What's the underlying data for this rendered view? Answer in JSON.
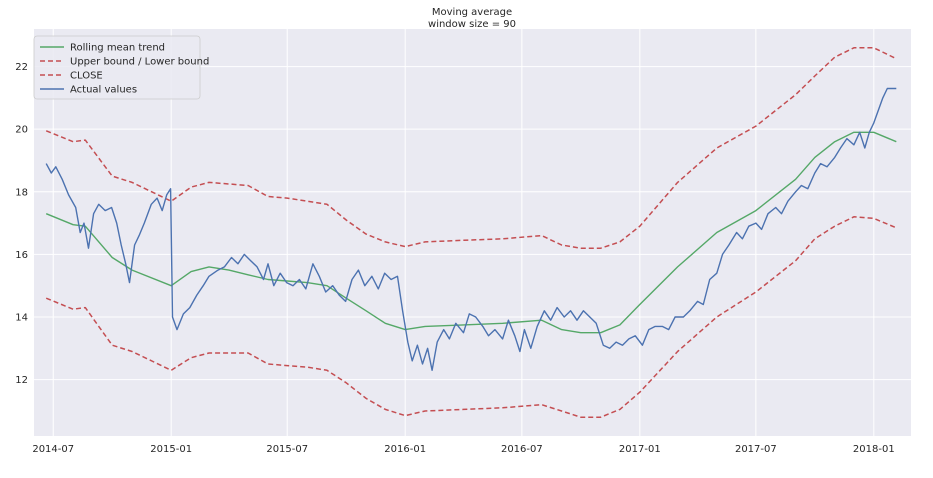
{
  "chart_data": {
    "type": "line",
    "title": "Moving average",
    "subtitle": "window size = 90",
    "xlabel": "",
    "ylabel": "",
    "grid": true,
    "legend_position": "top-left",
    "x_ticks": [
      "2014-07",
      "2015-01",
      "2015-07",
      "2016-01",
      "2016-07",
      "2017-01",
      "2017-07",
      "2018-01"
    ],
    "y_ticks": [
      12,
      14,
      16,
      18,
      20,
      22
    ],
    "xlim": [
      "2014-06-01",
      "2018-02-28"
    ],
    "ylim": [
      10.2,
      23.2
    ],
    "colors": {
      "background": "#eaeaf2",
      "grid": "#ffffff",
      "rolling_mean": "#55a868",
      "bounds": "#c44e52",
      "actual": "#4c72b0"
    },
    "series": [
      {
        "name": "Rolling mean trend",
        "style": "solid",
        "color_key": "rolling_mean",
        "points": [
          [
            "2014-06-20",
            17.3
          ],
          [
            "2014-08-01",
            16.95
          ],
          [
            "2014-08-20",
            16.9
          ],
          [
            "2014-10-01",
            15.9
          ],
          [
            "2014-11-01",
            15.5
          ],
          [
            "2015-01-01",
            15.0
          ],
          [
            "2015-02-01",
            15.45
          ],
          [
            "2015-03-01",
            15.6
          ],
          [
            "2015-04-01",
            15.5
          ],
          [
            "2015-05-01",
            15.35
          ],
          [
            "2015-06-01",
            15.2
          ],
          [
            "2015-07-01",
            15.15
          ],
          [
            "2015-08-01",
            15.1
          ],
          [
            "2015-09-01",
            15.0
          ],
          [
            "2015-10-01",
            14.6
          ],
          [
            "2015-11-01",
            14.2
          ],
          [
            "2015-12-01",
            13.8
          ],
          [
            "2016-01-01",
            13.6
          ],
          [
            "2016-02-01",
            13.7
          ],
          [
            "2016-04-01",
            13.75
          ],
          [
            "2016-06-01",
            13.8
          ],
          [
            "2016-08-01",
            13.9
          ],
          [
            "2016-09-01",
            13.6
          ],
          [
            "2016-10-01",
            13.5
          ],
          [
            "2016-11-01",
            13.5
          ],
          [
            "2016-12-01",
            13.75
          ],
          [
            "2017-01-01",
            14.4
          ],
          [
            "2017-03-01",
            15.6
          ],
          [
            "2017-05-01",
            16.7
          ],
          [
            "2017-07-01",
            17.4
          ],
          [
            "2017-09-01",
            18.4
          ],
          [
            "2017-10-01",
            19.1
          ],
          [
            "2017-11-01",
            19.6
          ],
          [
            "2017-12-01",
            19.9
          ],
          [
            "2018-01-01",
            19.9
          ],
          [
            "2018-02-05",
            19.6
          ]
        ]
      },
      {
        "name": "Upper bound / Lower bound",
        "style": "dashed",
        "color_key": "bounds",
        "points": [
          [
            "2014-06-20",
            19.95
          ],
          [
            "2014-08-01",
            19.6
          ],
          [
            "2014-08-20",
            19.65
          ],
          [
            "2014-10-01",
            18.5
          ],
          [
            "2014-11-01",
            18.3
          ],
          [
            "2015-01-01",
            17.7
          ],
          [
            "2015-02-01",
            18.15
          ],
          [
            "2015-03-01",
            18.3
          ],
          [
            "2015-05-01",
            18.2
          ],
          [
            "2015-06-01",
            17.85
          ],
          [
            "2015-07-01",
            17.8
          ],
          [
            "2015-08-01",
            17.7
          ],
          [
            "2015-09-01",
            17.6
          ],
          [
            "2015-10-01",
            17.1
          ],
          [
            "2015-11-01",
            16.65
          ],
          [
            "2015-12-01",
            16.4
          ],
          [
            "2016-01-01",
            16.25
          ],
          [
            "2016-02-01",
            16.4
          ],
          [
            "2016-04-01",
            16.45
          ],
          [
            "2016-06-01",
            16.5
          ],
          [
            "2016-08-01",
            16.6
          ],
          [
            "2016-09-01",
            16.3
          ],
          [
            "2016-10-01",
            16.2
          ],
          [
            "2016-11-01",
            16.2
          ],
          [
            "2016-12-01",
            16.4
          ],
          [
            "2017-01-01",
            16.9
          ],
          [
            "2017-03-01",
            18.3
          ],
          [
            "2017-05-01",
            19.4
          ],
          [
            "2017-07-01",
            20.1
          ],
          [
            "2017-09-01",
            21.1
          ],
          [
            "2017-10-01",
            21.7
          ],
          [
            "2017-11-01",
            22.3
          ],
          [
            "2017-12-01",
            22.6
          ],
          [
            "2018-01-01",
            22.6
          ],
          [
            "2018-02-05",
            22.25
          ]
        ]
      },
      {
        "name": "CLOSE",
        "style": "dashed",
        "color_key": "bounds",
        "points": [
          [
            "2014-06-20",
            14.6
          ],
          [
            "2014-08-01",
            14.25
          ],
          [
            "2014-08-20",
            14.3
          ],
          [
            "2014-10-01",
            13.1
          ],
          [
            "2014-11-01",
            12.9
          ],
          [
            "2015-01-01",
            12.3
          ],
          [
            "2015-02-01",
            12.7
          ],
          [
            "2015-03-01",
            12.85
          ],
          [
            "2015-05-01",
            12.85
          ],
          [
            "2015-06-01",
            12.5
          ],
          [
            "2015-07-01",
            12.45
          ],
          [
            "2015-08-01",
            12.4
          ],
          [
            "2015-09-01",
            12.3
          ],
          [
            "2015-10-01",
            11.9
          ],
          [
            "2015-11-01",
            11.4
          ],
          [
            "2015-12-01",
            11.05
          ],
          [
            "2016-01-01",
            10.85
          ],
          [
            "2016-02-01",
            11.0
          ],
          [
            "2016-04-01",
            11.05
          ],
          [
            "2016-06-01",
            11.1
          ],
          [
            "2016-08-01",
            11.2
          ],
          [
            "2016-09-01",
            11.0
          ],
          [
            "2016-10-01",
            10.8
          ],
          [
            "2016-11-01",
            10.8
          ],
          [
            "2016-12-01",
            11.05
          ],
          [
            "2017-01-01",
            11.6
          ],
          [
            "2017-03-01",
            12.9
          ],
          [
            "2017-05-01",
            14.0
          ],
          [
            "2017-07-01",
            14.8
          ],
          [
            "2017-09-01",
            15.8
          ],
          [
            "2017-10-01",
            16.5
          ],
          [
            "2017-11-01",
            16.9
          ],
          [
            "2017-12-01",
            17.2
          ],
          [
            "2018-01-01",
            17.15
          ],
          [
            "2018-02-05",
            16.85
          ]
        ]
      },
      {
        "name": "Actual values",
        "style": "solid",
        "color_key": "actual",
        "points": [
          [
            "2014-06-20",
            18.9
          ],
          [
            "2014-06-28",
            18.6
          ],
          [
            "2014-07-05",
            18.8
          ],
          [
            "2014-07-15",
            18.4
          ],
          [
            "2014-07-25",
            17.9
          ],
          [
            "2014-08-05",
            17.5
          ],
          [
            "2014-08-12",
            16.7
          ],
          [
            "2014-08-18",
            17.0
          ],
          [
            "2014-08-25",
            16.2
          ],
          [
            "2014-09-02",
            17.3
          ],
          [
            "2014-09-10",
            17.6
          ],
          [
            "2014-09-20",
            17.4
          ],
          [
            "2014-09-30",
            17.5
          ],
          [
            "2014-10-08",
            17.0
          ],
          [
            "2014-10-15",
            16.3
          ],
          [
            "2014-10-22",
            15.7
          ],
          [
            "2014-10-28",
            15.1
          ],
          [
            "2014-11-05",
            16.3
          ],
          [
            "2014-11-12",
            16.6
          ],
          [
            "2014-11-20",
            17.0
          ],
          [
            "2014-12-01",
            17.6
          ],
          [
            "2014-12-10",
            17.8
          ],
          [
            "2014-12-18",
            17.4
          ],
          [
            "2014-12-25",
            17.9
          ],
          [
            "2014-12-31",
            18.1
          ],
          [
            "2015-01-03",
            14.0
          ],
          [
            "2015-01-10",
            13.6
          ],
          [
            "2015-01-20",
            14.1
          ],
          [
            "2015-01-30",
            14.3
          ],
          [
            "2015-02-10",
            14.7
          ],
          [
            "2015-02-20",
            15.0
          ],
          [
            "2015-03-01",
            15.3
          ],
          [
            "2015-03-15",
            15.5
          ],
          [
            "2015-03-25",
            15.6
          ],
          [
            "2015-04-05",
            15.9
          ],
          [
            "2015-04-15",
            15.7
          ],
          [
            "2015-04-25",
            16.0
          ],
          [
            "2015-05-05",
            15.8
          ],
          [
            "2015-05-15",
            15.6
          ],
          [
            "2015-05-25",
            15.2
          ],
          [
            "2015-06-01",
            15.7
          ],
          [
            "2015-06-10",
            15.0
          ],
          [
            "2015-06-20",
            15.4
          ],
          [
            "2015-06-30",
            15.1
          ],
          [
            "2015-07-10",
            15.0
          ],
          [
            "2015-07-20",
            15.2
          ],
          [
            "2015-07-30",
            14.9
          ],
          [
            "2015-08-10",
            15.7
          ],
          [
            "2015-08-20",
            15.3
          ],
          [
            "2015-08-30",
            14.8
          ],
          [
            "2015-09-10",
            15.0
          ],
          [
            "2015-09-20",
            14.7
          ],
          [
            "2015-09-30",
            14.5
          ],
          [
            "2015-10-10",
            15.2
          ],
          [
            "2015-10-20",
            15.5
          ],
          [
            "2015-10-30",
            15.0
          ],
          [
            "2015-11-10",
            15.3
          ],
          [
            "2015-11-20",
            14.9
          ],
          [
            "2015-11-30",
            15.4
          ],
          [
            "2015-12-10",
            15.2
          ],
          [
            "2015-12-20",
            15.3
          ],
          [
            "2015-12-28",
            14.2
          ],
          [
            "2016-01-05",
            13.2
          ],
          [
            "2016-01-12",
            12.6
          ],
          [
            "2016-01-20",
            13.1
          ],
          [
            "2016-01-28",
            12.5
          ],
          [
            "2016-02-05",
            13.0
          ],
          [
            "2016-02-12",
            12.3
          ],
          [
            "2016-02-20",
            13.2
          ],
          [
            "2016-03-01",
            13.6
          ],
          [
            "2016-03-10",
            13.3
          ],
          [
            "2016-03-20",
            13.8
          ],
          [
            "2016-04-01",
            13.5
          ],
          [
            "2016-04-10",
            14.1
          ],
          [
            "2016-04-20",
            14.0
          ],
          [
            "2016-05-01",
            13.7
          ],
          [
            "2016-05-10",
            13.4
          ],
          [
            "2016-05-20",
            13.6
          ],
          [
            "2016-06-01",
            13.3
          ],
          [
            "2016-06-10",
            13.9
          ],
          [
            "2016-06-20",
            13.4
          ],
          [
            "2016-06-28",
            12.9
          ],
          [
            "2016-07-05",
            13.6
          ],
          [
            "2016-07-15",
            13.0
          ],
          [
            "2016-07-25",
            13.7
          ],
          [
            "2016-08-05",
            14.2
          ],
          [
            "2016-08-15",
            13.9
          ],
          [
            "2016-08-25",
            14.3
          ],
          [
            "2016-09-05",
            14.0
          ],
          [
            "2016-09-15",
            14.2
          ],
          [
            "2016-09-25",
            13.9
          ],
          [
            "2016-10-05",
            14.2
          ],
          [
            "2016-10-15",
            14.0
          ],
          [
            "2016-10-25",
            13.8
          ],
          [
            "2016-11-05",
            13.1
          ],
          [
            "2016-11-15",
            13.0
          ],
          [
            "2016-11-25",
            13.2
          ],
          [
            "2016-12-05",
            13.1
          ],
          [
            "2016-12-15",
            13.3
          ],
          [
            "2016-12-25",
            13.4
          ],
          [
            "2017-01-05",
            13.1
          ],
          [
            "2017-01-15",
            13.6
          ],
          [
            "2017-01-25",
            13.7
          ],
          [
            "2017-02-05",
            13.7
          ],
          [
            "2017-02-15",
            13.6
          ],
          [
            "2017-02-25",
            14.0
          ],
          [
            "2017-03-10",
            14.0
          ],
          [
            "2017-03-20",
            14.2
          ],
          [
            "2017-04-01",
            14.5
          ],
          [
            "2017-04-10",
            14.4
          ],
          [
            "2017-04-20",
            15.2
          ],
          [
            "2017-05-01",
            15.4
          ],
          [
            "2017-05-10",
            16.0
          ],
          [
            "2017-05-20",
            16.3
          ],
          [
            "2017-06-01",
            16.7
          ],
          [
            "2017-06-10",
            16.5
          ],
          [
            "2017-06-20",
            16.9
          ],
          [
            "2017-07-01",
            17.0
          ],
          [
            "2017-07-10",
            16.8
          ],
          [
            "2017-07-20",
            17.3
          ],
          [
            "2017-08-01",
            17.5
          ],
          [
            "2017-08-10",
            17.3
          ],
          [
            "2017-08-20",
            17.7
          ],
          [
            "2017-09-01",
            18.0
          ],
          [
            "2017-09-10",
            18.2
          ],
          [
            "2017-09-20",
            18.1
          ],
          [
            "2017-10-01",
            18.6
          ],
          [
            "2017-10-10",
            18.9
          ],
          [
            "2017-10-20",
            18.8
          ],
          [
            "2017-11-01",
            19.1
          ],
          [
            "2017-11-10",
            19.4
          ],
          [
            "2017-11-20",
            19.7
          ],
          [
            "2017-12-01",
            19.5
          ],
          [
            "2017-12-10",
            19.9
          ],
          [
            "2017-12-18",
            19.4
          ],
          [
            "2017-12-25",
            19.9
          ],
          [
            "2018-01-01",
            20.2
          ],
          [
            "2018-01-08",
            20.6
          ],
          [
            "2018-01-15",
            21.0
          ],
          [
            "2018-01-22",
            21.3
          ],
          [
            "2018-02-05",
            21.3
          ]
        ]
      }
    ]
  }
}
